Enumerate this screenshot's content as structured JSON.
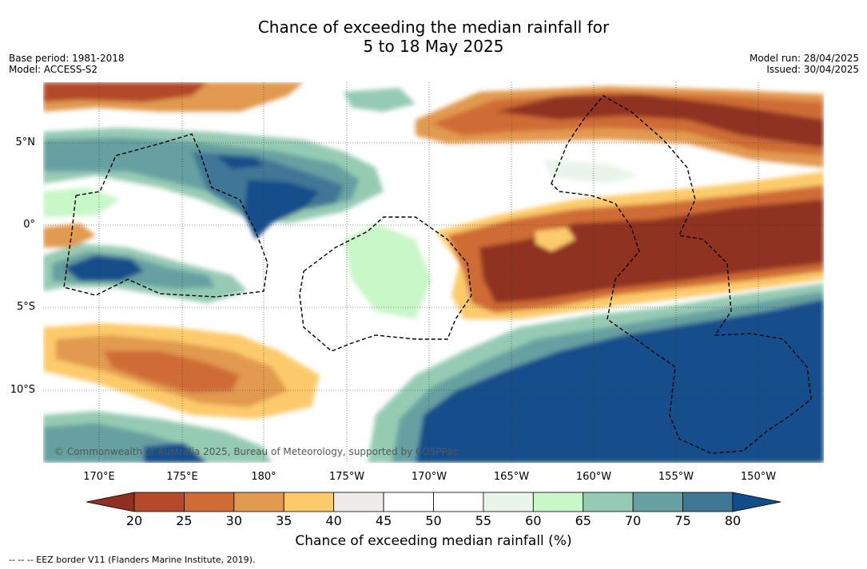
{
  "title_line1": "Chance of exceeding the median rainfall for",
  "title_line2": "5 to 18 May 2025",
  "meta_left": [
    "Base period: 1981-2018",
    "Model: ACCESS-S2"
  ],
  "meta_right": [
    "Model run: 28/04/2025",
    "Issued: 30/04/2025"
  ],
  "lat_labels": [
    "5°N",
    "0°",
    "5°S",
    "10°S"
  ],
  "lon_labels": [
    "170°E",
    "175°E",
    "180°",
    "175°W",
    "170°W",
    "165°W",
    "160°W",
    "155°W",
    "150°W"
  ],
  "colorbar": {
    "ticks": [
      "20",
      "25",
      "30",
      "35",
      "40",
      "45",
      "50",
      "55",
      "60",
      "65",
      "70",
      "75",
      "80"
    ],
    "colors": [
      "#8f3020",
      "#b44a2a",
      "#cf6c35",
      "#e19a4f",
      "#fcca6b",
      "#f0ebe7",
      "#ffffff",
      "#ffffff",
      "#e8f5e8",
      "#c8f7c8",
      "#96cbb3",
      "#66a0a1",
      "#3f7796",
      "#124d8b"
    ],
    "label": "Chance of exceeding median rainfall (%)"
  },
  "copyright": "© Commonwealth of Australia 2025, Bureau of Meteorology, supported by COSPPac",
  "footer": "-- -- -- EEZ border V11 (Flanders Marine Institute, 2019)."
}
